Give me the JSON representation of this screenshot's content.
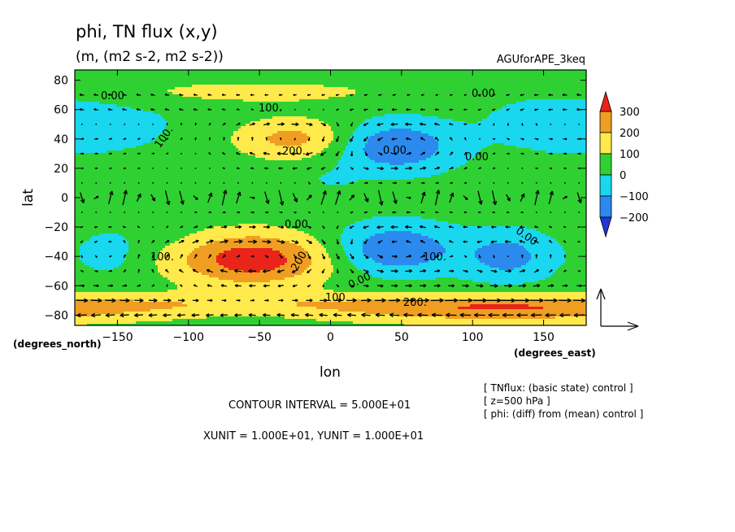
{
  "chart_data": {
    "type": "heatmap",
    "title": "phi, TN flux (x,y)",
    "subtitle": "(m, (m2 s-2, m2 s-2))",
    "run_label": "AGUforAPE_3keq",
    "xlabel": "lon",
    "ylabel": "lat",
    "x_unit_label": "(degrees_east)",
    "y_unit_label": "(degrees_north)",
    "xlim": [
      -180,
      180
    ],
    "ylim": [
      -87,
      87
    ],
    "x_ticks": [
      -150,
      -100,
      -50,
      0,
      50,
      100,
      150
    ],
    "y_ticks": [
      80,
      60,
      40,
      20,
      0,
      -20,
      -40,
      -60,
      -80
    ],
    "colorbar": {
      "levels": [
        300,
        200,
        100,
        0,
        -100,
        -200
      ],
      "colors": {
        "gt300": "#e8241b",
        "200_300": "#f09e22",
        "100_200": "#ffe94b",
        "0_100": "#2fd132",
        "m100_0": "#18d7ef",
        "m200_m100": "#2c8aef",
        "lt_m200": "#2136d6"
      }
    },
    "contour_labels": [
      "0.00",
      "0.00",
      "100.",
      "100.",
      "200.",
      "0.00",
      "0.00",
      "0.00",
      "100.",
      "200.",
      "100.",
      "0.00",
      "100.",
      "200.",
      "0.00"
    ],
    "field_centers": [
      {
        "lon": -55,
        "lat": -42,
        "value": 320
      },
      {
        "lon": -25,
        "lat": 40,
        "value": 200
      },
      {
        "lon": 120,
        "lat": -77,
        "value": 200
      },
      {
        "lon": 45,
        "lat": 35,
        "value": -240
      },
      {
        "lon": 45,
        "lat": -35,
        "value": -240
      },
      {
        "lon": 125,
        "lat": -40,
        "value": -180
      },
      {
        "lon": -150,
        "lat": 50,
        "value": -60
      },
      {
        "lon": -155,
        "lat": -38,
        "value": -80
      },
      {
        "lon": 155,
        "lat": 52,
        "value": -90
      },
      {
        "lon": 0,
        "lat": 12,
        "value": -40
      },
      {
        "lon": -115,
        "lat": -28,
        "value": -20
      }
    ],
    "footer": {
      "contour_interval": "CONTOUR INTERVAL = 5.000E+01",
      "units": "XUNIT = 1.000E+01, YUNIT = 1.000E+01",
      "notes": [
        "[ TNflux: (basic state) control ]",
        "[ z=500 hPa ]",
        "[ phi: (diff) from (mean) control ]"
      ]
    }
  }
}
